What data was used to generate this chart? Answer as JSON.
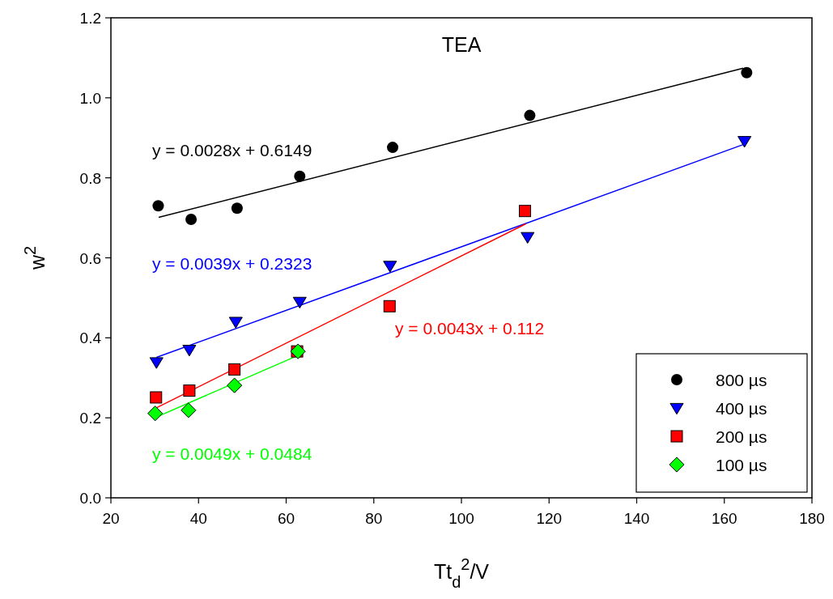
{
  "chart_data": {
    "type": "scatter",
    "title": "TEA",
    "xlabel": "Tt$_{d}$$^{2}$/V",
    "ylabel": "w$^{2}$",
    "xlim": [
      20,
      180
    ],
    "xticks": [
      20,
      40,
      60,
      80,
      100,
      120,
      140,
      160,
      180
    ],
    "ylim": [
      0,
      1.2
    ],
    "yticks": [
      {
        "value": 0,
        "label": "0.0"
      },
      0.2,
      0.4,
      0.6,
      0.8,
      {
        "value": 1,
        "label": "1.0"
      },
      {
        "value": 1.2,
        "label": "1.2"
      }
    ],
    "grid": false,
    "legend": "bottom right",
    "series": [
      {
        "name": "800 µs",
        "marker": "circle",
        "color": "#000000",
        "x": [
          30.8,
          38.3,
          48.8,
          63.1,
          84.3,
          115.6,
          165.1
        ],
        "values": [
          0.73,
          0.696,
          0.724,
          0.804,
          0.876,
          0.956,
          1.063
        ]
      },
      {
        "name": "400 µs",
        "marker": "triangle-down",
        "color": "#0000ff",
        "x": [
          30.4,
          37.9,
          48.5,
          63.1,
          83.7,
          115.1,
          164.6
        ],
        "values": [
          0.339,
          0.37,
          0.44,
          0.49,
          0.58,
          0.652,
          0.892
        ]
      },
      {
        "name": "200 µs",
        "marker": "square",
        "color": "#ff0000",
        "x": [
          30.3,
          37.9,
          48.2,
          62.5,
          83.6,
          114.5
        ],
        "values": [
          0.251,
          0.268,
          0.321,
          0.366,
          0.479,
          0.717
        ]
      },
      {
        "name": "100 µs",
        "marker": "diamond",
        "color": "#00ff00",
        "x": [
          30.1,
          37.7,
          48.2,
          62.7
        ],
        "values": [
          0.211,
          0.219,
          0.281,
          0.366
        ]
      },
      {
        "type": "line",
        "marker": "none",
        "color": "#000000",
        "x": [
          30.9,
          164.3
        ],
        "values": [
          0.701,
          1.074
        ]
      },
      {
        "type": "line",
        "marker": "none",
        "color": "#0000ff",
        "x": [
          30.4,
          164.3
        ],
        "values": [
          0.351,
          0.883
        ]
      },
      {
        "type": "line",
        "marker": "none",
        "color": "#ff0000",
        "x": [
          30.0,
          114.7
        ],
        "values": [
          0.223,
          0.685
        ]
      },
      {
        "type": "line",
        "marker": "none",
        "color": "#00ff00",
        "x": [
          30.0,
          62.7
        ],
        "values": [
          0.2,
          0.356
        ]
      }
    ],
    "annotations": [
      "y = 0.0028x + 0.6149",
      "y = 0.0039x + 0.2323",
      "y = 0.0043x + 0.112",
      "y = 0.0049x + 0.0484"
    ]
  }
}
